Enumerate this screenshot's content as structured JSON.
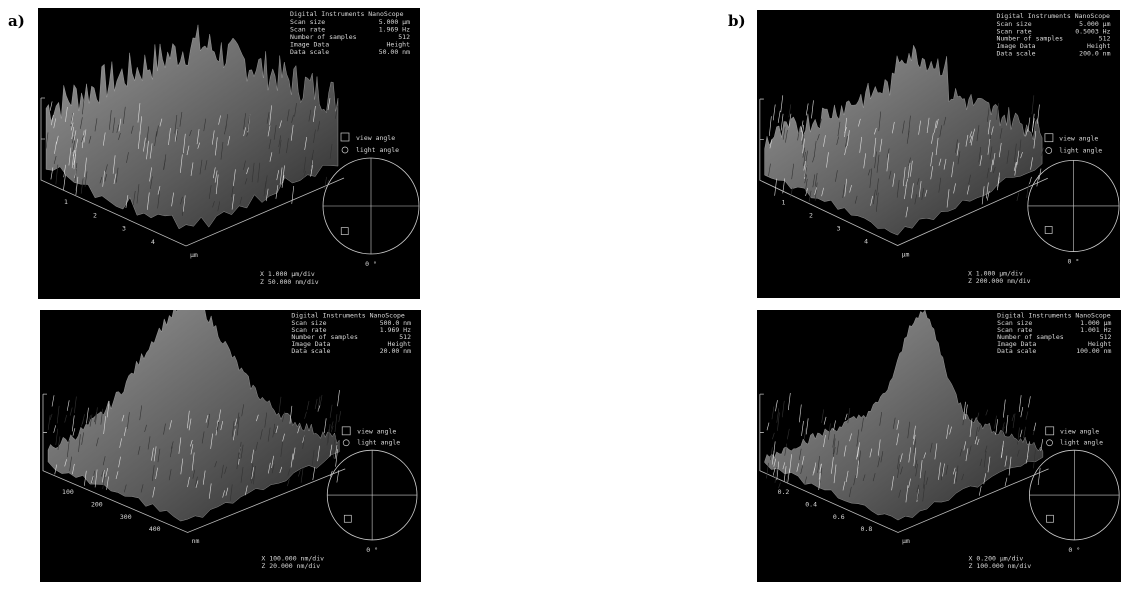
{
  "labels": [
    "a)",
    "b)"
  ],
  "panels": [
    {
      "header": "Digital Instruments NanoScope",
      "info": [
        [
          "Scan size",
          "5.000 µm"
        ],
        [
          "Scan rate",
          "1.969 Hz"
        ],
        [
          "Number of samples",
          "512"
        ],
        [
          "Image Data",
          "Height"
        ],
        [
          "Data scale",
          "50.00 nm"
        ]
      ],
      "ticks": [
        "1",
        "2",
        "3",
        "4"
      ],
      "unit": "µm",
      "view": "view angle",
      "light": "light angle",
      "angle": "0 °",
      "scale": [
        "X  1.000 µm/div",
        "Z  50.000 nm/div"
      ]
    },
    {
      "header": "Digital Instruments NanoScope",
      "info": [
        [
          "Scan size",
          "500.0 nm"
        ],
        [
          "Scan rate",
          "1.969 Hz"
        ],
        [
          "Number of samples",
          "512"
        ],
        [
          "Image Data",
          "Height"
        ],
        [
          "Data scale",
          "20.00 nm"
        ]
      ],
      "ticks": [
        "100",
        "200",
        "300",
        "400"
      ],
      "unit": "nm",
      "view": "view angle",
      "light": "light angle",
      "angle": "0 °",
      "scale": [
        "X  100.000 nm/div",
        "Z  20.000 nm/div"
      ]
    },
    {
      "header": "Digital Instruments NanoScope",
      "info": [
        [
          "Scan size",
          "5.000 µm"
        ],
        [
          "Scan rate",
          "0.5003 Hz"
        ],
        [
          "Number of samples",
          "512"
        ],
        [
          "Image Data",
          "Height"
        ],
        [
          "Data scale",
          "200.0 nm"
        ]
      ],
      "ticks": [
        "1",
        "2",
        "3",
        "4"
      ],
      "unit": "µm",
      "view": "view angle",
      "light": "light angle",
      "angle": "0 °",
      "scale": [
        "X  1.000 µm/div",
        "Z  200.000 nm/div"
      ]
    },
    {
      "header": "Digital Instruments NanoScope",
      "info": [
        [
          "Scan size",
          "1.000 µm"
        ],
        [
          "Scan rate",
          "1.001 Hz"
        ],
        [
          "Number of samples",
          "512"
        ],
        [
          "Image Data",
          "Height"
        ],
        [
          "Data scale",
          "100.00 nm"
        ]
      ],
      "ticks": [
        "0.2",
        "0.4",
        "0.6",
        "0.8"
      ],
      "unit": "µm",
      "view": "view angle",
      "light": "light angle",
      "angle": "0 °",
      "scale": [
        "X  0.200 µm/div",
        "Z  100.000 nm/div"
      ]
    }
  ]
}
